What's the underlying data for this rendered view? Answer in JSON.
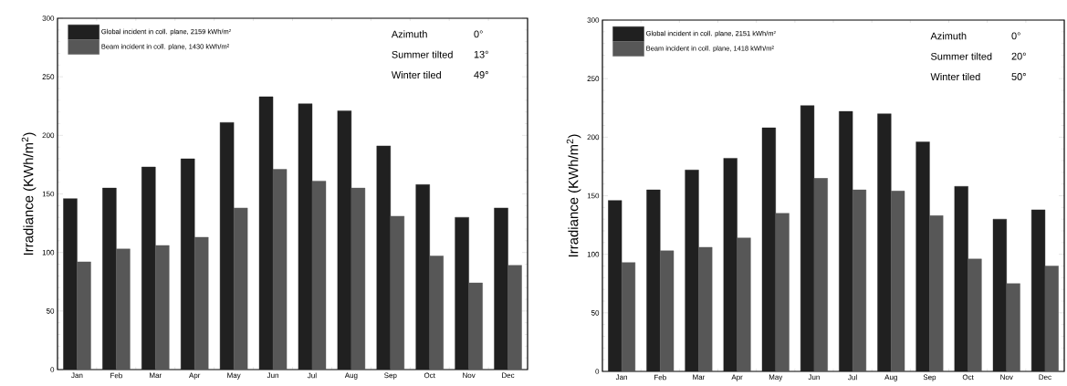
{
  "chart_data": [
    {
      "type": "bar",
      "ylabel": "Irradiance (KWh/m$^{2}$)",
      "categories": [
        "Jan",
        "Feb",
        "Mar",
        "Apr",
        "May",
        "Jun",
        "Jul",
        "Aug",
        "Sep",
        "Oct",
        "Nov",
        "Dec"
      ],
      "series": [
        {
          "name": "Global incident in coll. plane,  2159 kWh/m²",
          "color": "#202020",
          "values": [
            146,
            155,
            173,
            180,
            211,
            233,
            227,
            221,
            191,
            158,
            130,
            138
          ]
        },
        {
          "name": "Beam incident in coll. plane,  1430 kWh/m²",
          "color": "#575757",
          "values": [
            92,
            103,
            106,
            113,
            138,
            171,
            161,
            155,
            131,
            97,
            74,
            89
          ]
        }
      ],
      "ylim": [
        0,
        300
      ],
      "yticks": [
        0,
        50,
        100,
        150,
        200,
        250,
        300
      ],
      "legend": "top left",
      "annotations": [
        "Azimuth",
        "0°",
        "Summer tilted",
        "13°",
        "Winter tiled",
        "49°"
      ]
    },
    {
      "type": "bar",
      "ylabel": "Irradiance (KWh/m$^{2}$)",
      "categories": [
        "Jan",
        "Feb",
        "Mar",
        "Apr",
        "May",
        "Jun",
        "Jul",
        "Aug",
        "Sep",
        "Oct",
        "Nov",
        "Dec"
      ],
      "series": [
        {
          "name": "Global incident in coll. plane,  2151 kWh/m²",
          "color": "#202020",
          "values": [
            146,
            155,
            172,
            182,
            208,
            227,
            222,
            220,
            196,
            158,
            130,
            138
          ]
        },
        {
          "name": "Beam incident in coll. plane,  1418 kWh/m²",
          "color": "#575757",
          "values": [
            93,
            103,
            106,
            114,
            135,
            165,
            155,
            154,
            133,
            96,
            75,
            90
          ]
        }
      ],
      "ylim": [
        0,
        300
      ],
      "yticks": [
        0,
        50,
        100,
        150,
        200,
        250,
        300
      ],
      "legend": "top left",
      "annotations": [
        "Azimuth",
        "0°",
        "Summer tilted",
        "20°",
        "Winter tiled",
        "50°"
      ]
    }
  ]
}
